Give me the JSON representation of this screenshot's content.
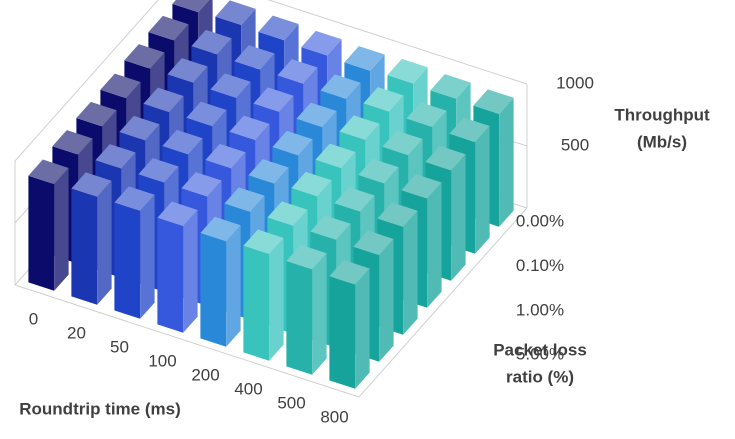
{
  "chart_data": {
    "type": "bar3d",
    "x_label": "Roundtrip time (ms)",
    "depth_label": [
      "Packet loss",
      "ratio (%)"
    ],
    "z_label": [
      "Throughput",
      "(Mb/s)"
    ],
    "categories": [
      "0.00%",
      null,
      "0.10%",
      null,
      "1.00%",
      null,
      "5.00%"
    ],
    "zlim": [
      0,
      1000
    ],
    "zticks": [
      500,
      1000
    ],
    "grid": true,
    "series": [
      {
        "name": "0",
        "color": "#0b0b6b",
        "values": [
          940,
          930,
          920,
          900,
          890,
          880,
          860
        ]
      },
      {
        "name": "20",
        "color": "#1a36b0",
        "values": [
          950,
          930,
          920,
          900,
          890,
          880,
          870
        ]
      },
      {
        "name": "50",
        "color": "#1f44c8",
        "values": [
          940,
          920,
          910,
          900,
          890,
          880,
          870
        ]
      },
      {
        "name": "100",
        "color": "#3558dc",
        "values": [
          930,
          920,
          910,
          900,
          890,
          880,
          860
        ]
      },
      {
        "name": "200",
        "color": "#2a88d8",
        "values": [
          920,
          910,
          900,
          890,
          880,
          870,
          850
        ]
      },
      {
        "name": "400",
        "color": "#38c3bd",
        "values": [
          930,
          920,
          910,
          900,
          890,
          870,
          860
        ]
      },
      {
        "name": "500",
        "color": "#26b2ab",
        "values": [
          920,
          910,
          900,
          890,
          880,
          870,
          850
        ]
      },
      {
        "name": "800",
        "color": "#16a39b",
        "values": [
          910,
          900,
          890,
          880,
          870,
          860,
          840
        ]
      }
    ]
  }
}
